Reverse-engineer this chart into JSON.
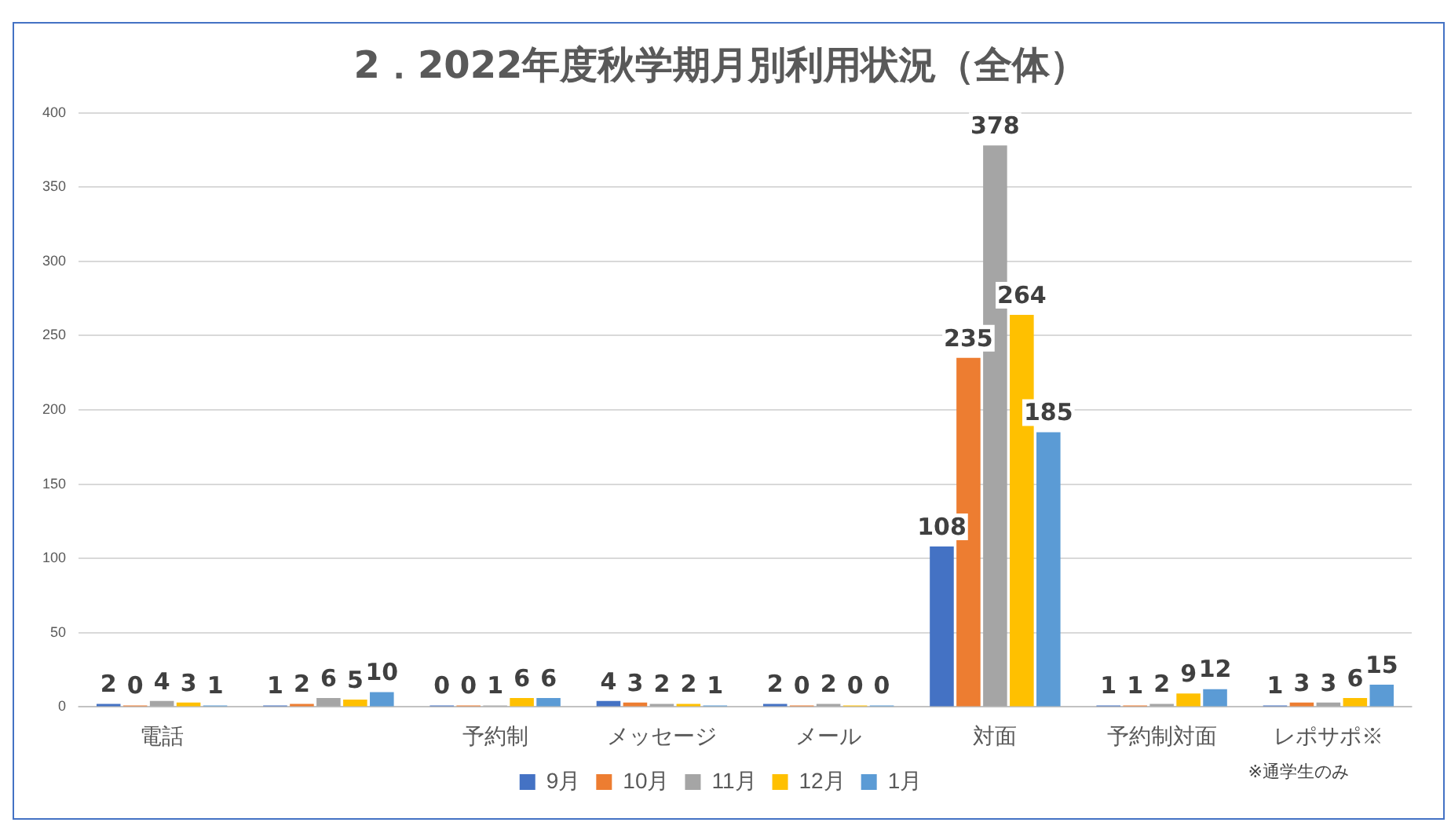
{
  "chart_data": {
    "type": "bar",
    "title": "2．2022年度秋学期月別利用状況（全体）",
    "categories": [
      "電話",
      null,
      "予約制",
      "メッセージ",
      "メール",
      "対面",
      "予約制対面",
      "レポサポ※"
    ],
    "series": [
      {
        "name": "9月",
        "color": "#4472c4",
        "values": [
          2,
          1,
          0,
          4,
          2,
          108,
          1,
          1
        ]
      },
      {
        "name": "10月",
        "color": "#ed7d31",
        "values": [
          0,
          2,
          0,
          3,
          0,
          235,
          1,
          3
        ]
      },
      {
        "name": "11月",
        "color": "#a5a5a5",
        "values": [
          4,
          6,
          1,
          2,
          2,
          378,
          2,
          3
        ]
      },
      {
        "name": "12月",
        "color": "#ffc000",
        "values": [
          3,
          5,
          6,
          2,
          0,
          264,
          9,
          6
        ]
      },
      {
        "name": "1月",
        "color": "#5b9bd5",
        "values": [
          1,
          10,
          6,
          1,
          0,
          185,
          12,
          15
        ]
      }
    ],
    "ylim": [
      0,
      400
    ],
    "yticks": [
      0,
      50,
      100,
      150,
      200,
      250,
      300,
      350,
      400
    ],
    "grid": "y",
    "legend": "bottom",
    "data_labels": true,
    "annotations": [
      "※通学生のみ"
    ]
  }
}
